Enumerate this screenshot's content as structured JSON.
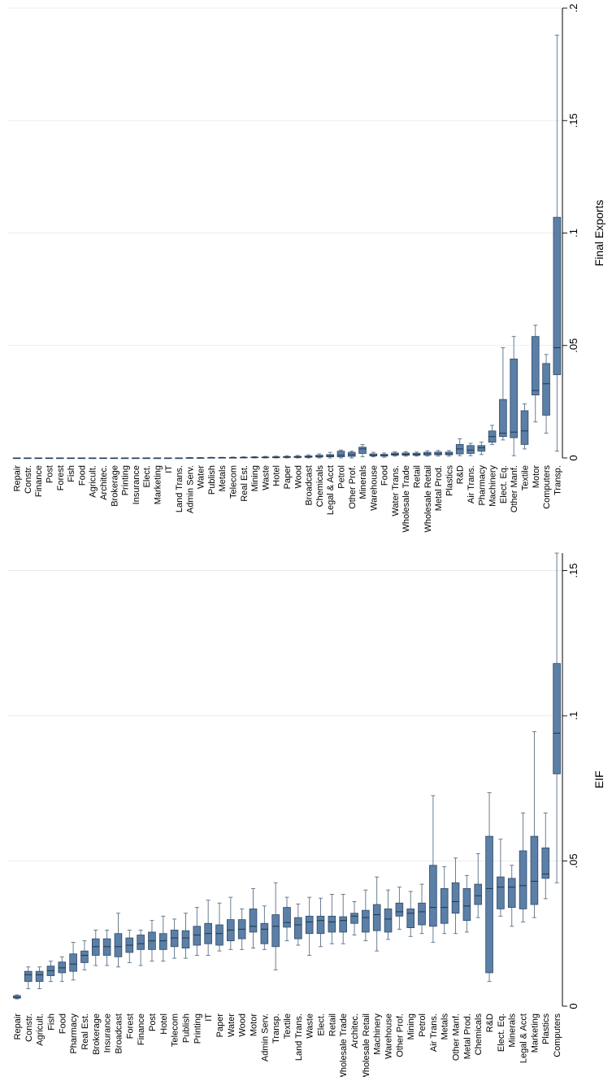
{
  "chart_data": [
    {
      "type": "box",
      "orientation": "rotated",
      "ylabel": "Final Exports",
      "ylim": [
        0,
        0.2
      ],
      "yticks": [
        {
          "value": 0,
          "label": "0"
        },
        {
          "value": 0.05,
          "label": ".05"
        },
        {
          "value": 0.1,
          "label": ".1"
        },
        {
          "value": 0.15,
          "label": ".15"
        },
        {
          "value": 0.2,
          "label": ".2"
        }
      ],
      "grid": true,
      "box_color": "#5b7fa6",
      "categories": [
        "Repair",
        "Constr.",
        "Finance",
        "Post",
        "Forest",
        "Fish",
        "Food",
        "Agricult.",
        "Architec.",
        "Brokerage",
        "Printing",
        "Insurance",
        "Elect.",
        "Marketing",
        "IT",
        "Land Trans.",
        "Admin Serv.",
        "Water",
        "Publish",
        "Metals",
        "Telecom",
        "Real Est.",
        "Mining",
        "Waste",
        "Hotel",
        "Paper",
        "Wood",
        "Broadcast",
        "Chemicals",
        "Legal & Acct",
        "Petrol",
        "Other Prof.",
        "Minerals",
        "Warehouse",
        "Food",
        "Water Trans.",
        "Wholesale Trade",
        "Retail",
        "Wholesale Retail",
        "Metal Prod.",
        "Plastics",
        "R&D",
        "Air Trans.",
        "Pharmacy",
        "Machinery",
        "Elect. Eq.",
        "Other Manf.",
        "Textile",
        "Motor",
        "Computers",
        "Transp."
      ],
      "boxes": [
        {
          "min": 0,
          "q1": 0,
          "median": 0,
          "q3": 0,
          "max": 0
        },
        {
          "min": 0,
          "q1": 0,
          "median": 0,
          "q3": 0,
          "max": 0
        },
        {
          "min": 0,
          "q1": 0,
          "median": 0,
          "q3": 0,
          "max": 0
        },
        {
          "min": 0,
          "q1": 0,
          "median": 0,
          "q3": 0,
          "max": 0
        },
        {
          "min": 0,
          "q1": 0,
          "median": 0,
          "q3": 0,
          "max": 0
        },
        {
          "min": 0,
          "q1": 0,
          "median": 0,
          "q3": 0,
          "max": 0
        },
        {
          "min": 0,
          "q1": 0,
          "median": 0,
          "q3": 0,
          "max": 0
        },
        {
          "min": 0,
          "q1": 0,
          "median": 0,
          "q3": 0,
          "max": 0
        },
        {
          "min": 0,
          "q1": 0,
          "median": 0,
          "q3": 0,
          "max": 0
        },
        {
          "min": 0,
          "q1": 0,
          "median": 0,
          "q3": 0,
          "max": 0
        },
        {
          "min": 0,
          "q1": 0,
          "median": 0,
          "q3": 0,
          "max": 0
        },
        {
          "min": 0,
          "q1": 0,
          "median": 0,
          "q3": 0,
          "max": 0
        },
        {
          "min": 0,
          "q1": 0,
          "median": 0,
          "q3": 0,
          "max": 0
        },
        {
          "min": 0,
          "q1": 0,
          "median": 0,
          "q3": 0,
          "max": 0
        },
        {
          "min": 0,
          "q1": 0,
          "median": 0,
          "q3": 0,
          "max": 0
        },
        {
          "min": 0,
          "q1": 0,
          "median": 0,
          "q3": 0,
          "max": 0
        },
        {
          "min": 0,
          "q1": 0,
          "median": 0,
          "q3": 0.0001,
          "max": 0.0002
        },
        {
          "min": 0,
          "q1": 0,
          "median": 0,
          "q3": 0.0001,
          "max": 0.0002
        },
        {
          "min": 0,
          "q1": 0,
          "median": 0.0001,
          "q3": 0.0002,
          "max": 0.0003
        },
        {
          "min": 0,
          "q1": 0,
          "median": 0.0001,
          "q3": 0.0002,
          "max": 0.0003
        },
        {
          "min": 0,
          "q1": 0,
          "median": 0.0001,
          "q3": 0.0002,
          "max": 0.0004
        },
        {
          "min": 0,
          "q1": 0.0001,
          "median": 0.0002,
          "q3": 0.0003,
          "max": 0.0005
        },
        {
          "min": 0,
          "q1": 0.0001,
          "median": 0.0002,
          "q3": 0.0004,
          "max": 0.0006
        },
        {
          "min": 0,
          "q1": 0.0001,
          "median": 0.0002,
          "q3": 0.0004,
          "max": 0.0007
        },
        {
          "min": 0,
          "q1": 0.0001,
          "median": 0.0003,
          "q3": 0.0005,
          "max": 0.0008
        },
        {
          "min": 0,
          "q1": 0.0002,
          "median": 0.0004,
          "q3": 0.0006,
          "max": 0.001
        },
        {
          "min": 0,
          "q1": 0.0002,
          "median": 0.0004,
          "q3": 0.0007,
          "max": 0.0011
        },
        {
          "min": 0,
          "q1": 0.0003,
          "median": 0.0005,
          "q3": 0.0009,
          "max": 0.0014
        },
        {
          "min": 0,
          "q1": 0.0004,
          "median": 0.0007,
          "q3": 0.0012,
          "max": 0.0018
        },
        {
          "min": 0,
          "q1": 0.0005,
          "median": 0.0009,
          "q3": 0.0015,
          "max": 0.0025
        },
        {
          "min": 0,
          "q1": 0.0005,
          "median": 0.0012,
          "q3": 0.003,
          "max": 0.0035
        },
        {
          "min": 0,
          "q1": 0.0007,
          "median": 0.0014,
          "q3": 0.0025,
          "max": 0.003
        },
        {
          "min": 0.0005,
          "q1": 0.002,
          "median": 0.004,
          "q3": 0.0048,
          "max": 0.006
        },
        {
          "min": 0.0005,
          "q1": 0.0009,
          "median": 0.0012,
          "q3": 0.0018,
          "max": 0.0025
        },
        {
          "min": 0.0003,
          "q1": 0.0008,
          "median": 0.0011,
          "q3": 0.0016,
          "max": 0.0022
        },
        {
          "min": 0.0008,
          "q1": 0.0012,
          "median": 0.0016,
          "q3": 0.0022,
          "max": 0.0028
        },
        {
          "min": 0.0008,
          "q1": 0.0012,
          "median": 0.0016,
          "q3": 0.0022,
          "max": 0.0028
        },
        {
          "min": 0.0008,
          "q1": 0.0012,
          "median": 0.0015,
          "q3": 0.0021,
          "max": 0.0026
        },
        {
          "min": 0.0008,
          "q1": 0.0013,
          "median": 0.0018,
          "q3": 0.0025,
          "max": 0.0032
        },
        {
          "min": 0.0008,
          "q1": 0.0014,
          "median": 0.0018,
          "q3": 0.0026,
          "max": 0.0033
        },
        {
          "min": 0.0008,
          "q1": 0.0014,
          "median": 0.0018,
          "q3": 0.0026,
          "max": 0.0033
        },
        {
          "min": 0.001,
          "q1": 0.0018,
          "median": 0.004,
          "q3": 0.006,
          "max": 0.0085
        },
        {
          "min": 0.001,
          "q1": 0.002,
          "median": 0.0035,
          "q3": 0.0055,
          "max": 0.0065
        },
        {
          "min": 0.0015,
          "q1": 0.003,
          "median": 0.0045,
          "q3": 0.0055,
          "max": 0.007
        },
        {
          "min": 0.006,
          "q1": 0.007,
          "median": 0.0095,
          "q3": 0.012,
          "max": 0.0145
        },
        {
          "min": 0.008,
          "q1": 0.0095,
          "median": 0.011,
          "q3": 0.026,
          "max": 0.049
        },
        {
          "min": 0.001,
          "q1": 0.009,
          "median": 0.0115,
          "q3": 0.044,
          "max": 0.054
        },
        {
          "min": 0.004,
          "q1": 0.006,
          "median": 0.012,
          "q3": 0.021,
          "max": 0.024
        },
        {
          "min": 0.016,
          "q1": 0.028,
          "median": 0.03,
          "q3": 0.054,
          "max": 0.059
        },
        {
          "min": 0.011,
          "q1": 0.019,
          "median": 0.033,
          "q3": 0.042,
          "max": 0.046
        },
        {
          "min": 0.003,
          "q1": 0.037,
          "median": 0.049,
          "q3": 0.107,
          "max": 0.188
        }
      ]
    },
    {
      "type": "box",
      "orientation": "rotated",
      "ylabel": "EIF",
      "ylim": [
        0,
        0.156
      ],
      "yticks": [
        {
          "value": 0,
          "label": "0"
        },
        {
          "value": 0.05,
          "label": ".05"
        },
        {
          "value": 0.1,
          "label": ".1"
        },
        {
          "value": 0.15,
          "label": ".15"
        }
      ],
      "grid": true,
      "box_color": "#5b7fa6",
      "categories": [
        "Repair",
        "Constr.",
        "Agricult.",
        "Fish",
        "Food",
        "Pharmacy",
        "Real Est.",
        "Brokerage",
        "Insurance",
        "Broadcast",
        "Forest",
        "Finance",
        "Post",
        "Hotel",
        "Telecom",
        "Publish",
        "Printing",
        "IT",
        "Paper",
        "Water",
        "Wood",
        "Motor",
        "Admin Serv.",
        "Transp.",
        "Textile",
        "Land Trans.",
        "Waste",
        "Elect.",
        "Retail",
        "Wholesale Trade",
        "Architec.",
        "Wholesale Retail",
        "Machinery",
        "Warehouse",
        "Other Prof.",
        "Mining",
        "Petrol",
        "Air Trans.",
        "Metals",
        "Other Manf.",
        "Metal Prod.",
        "Chemicals",
        "R&D",
        "Elect. Eq.",
        "Minerals",
        "Legal & Acct",
        "Marketing",
        "Plastics",
        "Computers"
      ],
      "boxes": [
        {
          "min": 0.0025,
          "q1": 0.0028,
          "median": 0.003,
          "q3": 0.0036,
          "max": 0.0039
        },
        {
          "min": 0.006,
          "q1": 0.0085,
          "median": 0.0108,
          "q3": 0.012,
          "max": 0.0135
        },
        {
          "min": 0.006,
          "q1": 0.0085,
          "median": 0.0108,
          "q3": 0.012,
          "max": 0.0135
        },
        {
          "min": 0.0085,
          "q1": 0.0105,
          "median": 0.0122,
          "q3": 0.0138,
          "max": 0.0155
        },
        {
          "min": 0.0085,
          "q1": 0.0115,
          "median": 0.0132,
          "q3": 0.0152,
          "max": 0.017
        },
        {
          "min": 0.009,
          "q1": 0.012,
          "median": 0.0145,
          "q3": 0.018,
          "max": 0.022
        },
        {
          "min": 0.0125,
          "q1": 0.015,
          "median": 0.0175,
          "q3": 0.019,
          "max": 0.0225
        },
        {
          "min": 0.014,
          "q1": 0.0175,
          "median": 0.0205,
          "q3": 0.0232,
          "max": 0.0262
        },
        {
          "min": 0.014,
          "q1": 0.0175,
          "median": 0.0205,
          "q3": 0.0232,
          "max": 0.0262
        },
        {
          "min": 0.0135,
          "q1": 0.017,
          "median": 0.0205,
          "q3": 0.025,
          "max": 0.032
        },
        {
          "min": 0.015,
          "q1": 0.0185,
          "median": 0.021,
          "q3": 0.0235,
          "max": 0.0262
        },
        {
          "min": 0.014,
          "q1": 0.0195,
          "median": 0.0215,
          "q3": 0.0245,
          "max": 0.0262
        },
        {
          "min": 0.0155,
          "q1": 0.0195,
          "median": 0.0225,
          "q3": 0.0255,
          "max": 0.0295
        },
        {
          "min": 0.0155,
          "q1": 0.0195,
          "median": 0.0225,
          "q3": 0.025,
          "max": 0.031
        },
        {
          "min": 0.0165,
          "q1": 0.0205,
          "median": 0.0235,
          "q3": 0.0262,
          "max": 0.03
        },
        {
          "min": 0.0165,
          "q1": 0.02,
          "median": 0.0235,
          "q3": 0.026,
          "max": 0.032
        },
        {
          "min": 0.0175,
          "q1": 0.021,
          "median": 0.0245,
          "q3": 0.0275,
          "max": 0.034
        },
        {
          "min": 0.0175,
          "q1": 0.0215,
          "median": 0.025,
          "q3": 0.0285,
          "max": 0.0365
        },
        {
          "min": 0.019,
          "q1": 0.021,
          "median": 0.025,
          "q3": 0.028,
          "max": 0.0355
        },
        {
          "min": 0.0195,
          "q1": 0.0225,
          "median": 0.0262,
          "q3": 0.0298,
          "max": 0.0375
        },
        {
          "min": 0.0195,
          "q1": 0.0232,
          "median": 0.0265,
          "q3": 0.0298,
          "max": 0.0335
        },
        {
          "min": 0.02,
          "q1": 0.0255,
          "median": 0.0275,
          "q3": 0.0335,
          "max": 0.0405
        },
        {
          "min": 0.0195,
          "q1": 0.0215,
          "median": 0.0265,
          "q3": 0.0285,
          "max": 0.0345
        },
        {
          "min": 0.0125,
          "q1": 0.0205,
          "median": 0.0275,
          "q3": 0.0315,
          "max": 0.0425
        },
        {
          "min": 0.0225,
          "q1": 0.0272,
          "median": 0.0288,
          "q3": 0.034,
          "max": 0.0375
        },
        {
          "min": 0.021,
          "q1": 0.0232,
          "median": 0.028,
          "q3": 0.0305,
          "max": 0.0352
        },
        {
          "min": 0.0175,
          "q1": 0.025,
          "median": 0.029,
          "q3": 0.031,
          "max": 0.0375
        },
        {
          "min": 0.0205,
          "q1": 0.025,
          "median": 0.0295,
          "q3": 0.031,
          "max": 0.0372
        },
        {
          "min": 0.0215,
          "q1": 0.0255,
          "median": 0.029,
          "q3": 0.031,
          "max": 0.0385
        },
        {
          "min": 0.0215,
          "q1": 0.0255,
          "median": 0.0295,
          "q3": 0.0308,
          "max": 0.0385
        },
        {
          "min": 0.0245,
          "q1": 0.0285,
          "median": 0.031,
          "q3": 0.032,
          "max": 0.036
        },
        {
          "min": 0.0225,
          "q1": 0.0255,
          "median": 0.0305,
          "q3": 0.033,
          "max": 0.04
        },
        {
          "min": 0.019,
          "q1": 0.026,
          "median": 0.0315,
          "q3": 0.035,
          "max": 0.0445
        },
        {
          "min": 0.023,
          "q1": 0.0255,
          "median": 0.03,
          "q3": 0.0335,
          "max": 0.04
        },
        {
          "min": 0.0265,
          "q1": 0.031,
          "median": 0.0325,
          "q3": 0.0355,
          "max": 0.041
        },
        {
          "min": 0.024,
          "q1": 0.027,
          "median": 0.032,
          "q3": 0.0335,
          "max": 0.0395
        },
        {
          "min": 0.025,
          "q1": 0.028,
          "median": 0.0325,
          "q3": 0.0355,
          "max": 0.042
        },
        {
          "min": 0.022,
          "q1": 0.0275,
          "median": 0.034,
          "q3": 0.0485,
          "max": 0.0725
        },
        {
          "min": 0.025,
          "q1": 0.0285,
          "median": 0.034,
          "q3": 0.0405,
          "max": 0.048
        },
        {
          "min": 0.025,
          "q1": 0.032,
          "median": 0.036,
          "q3": 0.0425,
          "max": 0.051
        },
        {
          "min": 0.0255,
          "q1": 0.0295,
          "median": 0.0345,
          "q3": 0.0405,
          "max": 0.045
        },
        {
          "min": 0.0305,
          "q1": 0.035,
          "median": 0.038,
          "q3": 0.042,
          "max": 0.0525
        },
        {
          "min": 0.0085,
          "q1": 0.0115,
          "median": 0.0405,
          "q3": 0.0585,
          "max": 0.0735
        },
        {
          "min": 0.031,
          "q1": 0.0335,
          "median": 0.041,
          "q3": 0.0445,
          "max": 0.0575
        },
        {
          "min": 0.0275,
          "q1": 0.034,
          "median": 0.041,
          "q3": 0.044,
          "max": 0.0485
        },
        {
          "min": 0.029,
          "q1": 0.0335,
          "median": 0.0415,
          "q3": 0.0535,
          "max": 0.0665
        },
        {
          "min": 0.0305,
          "q1": 0.035,
          "median": 0.043,
          "q3": 0.0585,
          "max": 0.0945
        },
        {
          "min": 0.037,
          "q1": 0.044,
          "median": 0.0455,
          "q3": 0.0545,
          "max": 0.0665
        },
        {
          "min": 0.0425,
          "q1": 0.08,
          "median": 0.094,
          "q3": 0.118,
          "max": 0.156
        }
      ]
    }
  ]
}
